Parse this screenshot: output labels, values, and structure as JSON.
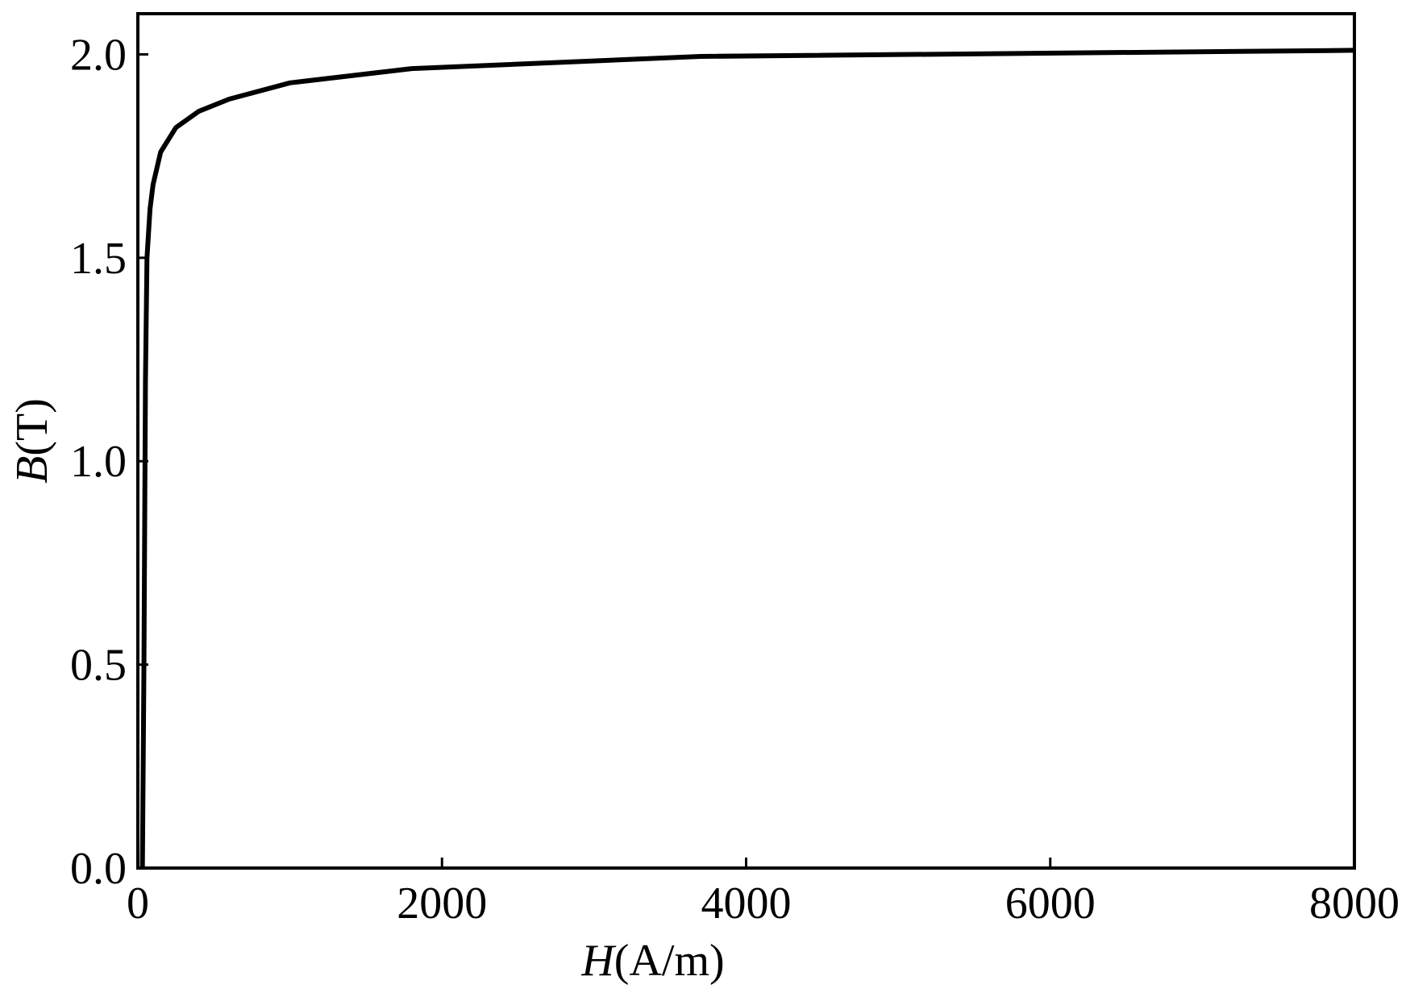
{
  "chart_data": {
    "type": "line",
    "x_label": "H(A/m)",
    "y_label": "B(T)",
    "x": [
      30,
      40,
      50,
      60,
      80,
      100,
      150,
      250,
      400,
      600,
      1000,
      1800,
      3700,
      8000
    ],
    "series": [
      {
        "color": "#000000",
        "values": [
          0,
          0.5,
          1.2,
          1.5,
          1.62,
          1.68,
          1.76,
          1.82,
          1.86,
          1.89,
          1.93,
          1.965,
          1.995,
          2.01
        ]
      }
    ],
    "xlim": [
      0,
      8000
    ],
    "xticks": [
      0,
      2000,
      4000,
      6000,
      8000
    ],
    "ylim": [
      0,
      2.1
    ],
    "yticks": [
      {
        "value": 0,
        "label": "0.0"
      },
      0.5,
      {
        "value": 1,
        "label": "1.0"
      },
      1.5,
      {
        "value": 2,
        "label": "2.0"
      }
    ],
    "grid": false
  }
}
